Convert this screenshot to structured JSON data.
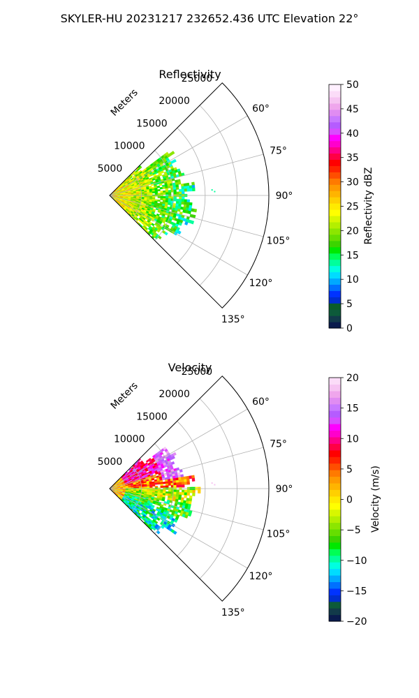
{
  "figure": {
    "suptitle": "SKYLER-HU  20231217  232652.436 UTC Elevation 22°"
  },
  "chart_data": [
    {
      "type": "polar-sector",
      "title": "Reflectivity",
      "range_label": "Meters",
      "range_ticks": [
        5000,
        10000,
        15000,
        20000,
        25000
      ],
      "range_tick_labels": [
        "5000",
        "10000",
        "15000",
        "20000",
        "25000"
      ],
      "theta_ticks_deg": [
        60,
        75,
        90,
        105,
        120,
        135
      ],
      "theta_tick_labels": [
        "60°",
        "75°",
        "90°",
        "105°",
        "120°",
        "135°"
      ],
      "theta_range_deg": [
        45,
        135
      ],
      "rmax": 25000,
      "grid": true,
      "data_extent": {
        "azimuth_deg": [
          45,
          135
        ],
        "range_m": [
          0,
          13000
        ]
      },
      "colorbar": {
        "label": "Reflectivity dBZ",
        "vmin": 0,
        "vmax": 50,
        "ticks": [
          0,
          5,
          10,
          15,
          20,
          25,
          30,
          35,
          40,
          45,
          50
        ],
        "tick_labels": [
          "0",
          "5",
          "10",
          "15",
          "20",
          "25",
          "30",
          "35",
          "40",
          "45",
          "50"
        ],
        "colors": [
          "#0a1b4d",
          "#123a4a",
          "#0d5a3a",
          "#0a5c2a",
          "#002ecf",
          "#0033ff",
          "#0070ff",
          "#00a9ff",
          "#00dcff",
          "#00ffe0",
          "#00ff9c",
          "#00ff55",
          "#00e800",
          "#3cd400",
          "#66de00",
          "#8ce600",
          "#b4ef00",
          "#d8f700",
          "#ffff00",
          "#ffea00",
          "#ffd000",
          "#ffb400",
          "#ff9a00",
          "#ff7a00",
          "#ff4e00",
          "#ff2400",
          "#ff0000",
          "#ff0044",
          "#ff0088",
          "#ff00cc",
          "#ff00ff",
          "#d84cff",
          "#b55cff",
          "#c879ff",
          "#e08cf2",
          "#efa6ec",
          "#f6c4f2",
          "#fbdcf8",
          "#fff0ff"
        ]
      }
    },
    {
      "type": "polar-sector",
      "title": "Velocity",
      "range_label": "Meters",
      "range_ticks": [
        5000,
        10000,
        15000,
        20000,
        25000
      ],
      "range_tick_labels": [
        "5000",
        "10000",
        "15000",
        "20000",
        "25000"
      ],
      "theta_ticks_deg": [
        60,
        75,
        90,
        105,
        120,
        135
      ],
      "theta_tick_labels": [
        "60°",
        "75°",
        "90°",
        "105°",
        "120°",
        "135°"
      ],
      "theta_range_deg": [
        45,
        135
      ],
      "rmax": 25000,
      "grid": true,
      "data_extent": {
        "azimuth_deg": [
          45,
          135
        ],
        "range_m": [
          0,
          13000
        ]
      },
      "colorbar": {
        "label": "Velocity (m/s)",
        "vmin": -20,
        "vmax": 20,
        "ticks": [
          -20,
          -15,
          -10,
          -5,
          0,
          5,
          10,
          15,
          20
        ],
        "tick_labels": [
          "−20",
          "−15",
          "−10",
          "−5",
          "0",
          "5",
          "10",
          "15",
          "20"
        ],
        "colors": [
          "#0a1b4d",
          "#123a4a",
          "#0d5a3a",
          "#002ecf",
          "#0033ff",
          "#0070ff",
          "#00a9ff",
          "#00dcff",
          "#00ffe0",
          "#00ff9c",
          "#00ff55",
          "#00e800",
          "#3cd400",
          "#66de00",
          "#8ce600",
          "#b4ef00",
          "#d8f700",
          "#ffff00",
          "#ffea00",
          "#ffd000",
          "#ffb400",
          "#ff9a00",
          "#ff7a00",
          "#ff4e00",
          "#ff2400",
          "#ff0000",
          "#ff0044",
          "#ff0088",
          "#ff00cc",
          "#ff00ff",
          "#d84cff",
          "#b55cff",
          "#c879ff",
          "#e08cf2",
          "#efa6ec",
          "#f6c4f2",
          "#fbdcf8"
        ]
      }
    }
  ]
}
